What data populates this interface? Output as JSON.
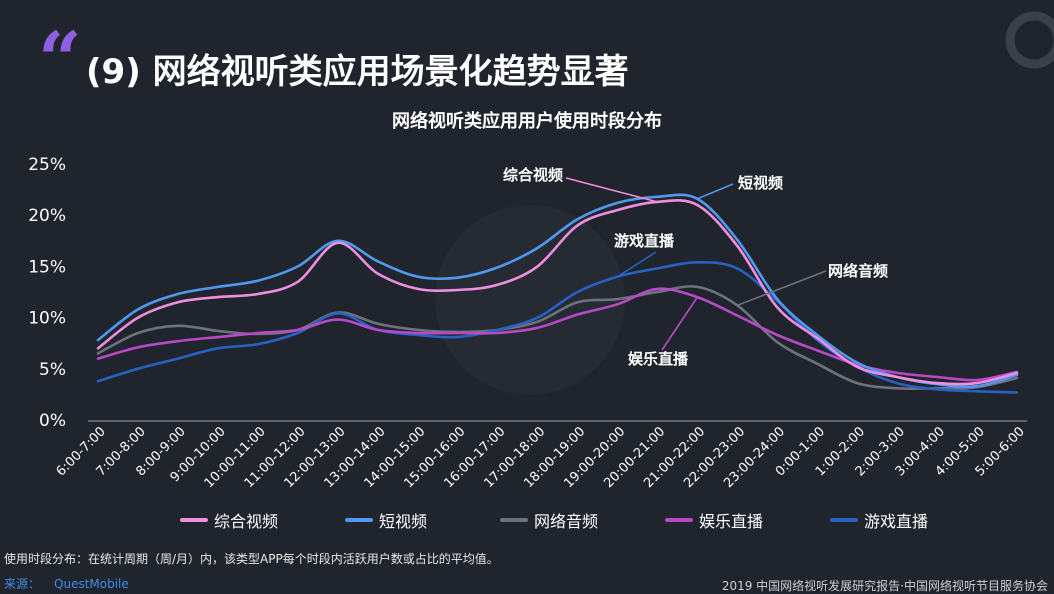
{
  "header": {
    "quote_mark": "“",
    "title": "(9) 网络视听类应用场景化趋势显著"
  },
  "chart_data": {
    "type": "line",
    "title": "网络视听类应用用户使用时段分布",
    "xlabel": "",
    "ylabel": "",
    "ylim": [
      0,
      25
    ],
    "yticks": [
      "0%",
      "5%",
      "10%",
      "15%",
      "20%",
      "25%"
    ],
    "grid": false,
    "legend": "bottom",
    "categories": [
      "6:00-7:00",
      "7:00-8:00",
      "8:00-9:00",
      "9:00-10:00",
      "10:00-11:00",
      "11:00-12:00",
      "12:00-13:00",
      "13:00-14:00",
      "14:00-15:00",
      "15:00-16:00",
      "16:00-17:00",
      "17:00-18:00",
      "18:00-19:00",
      "19:00-20:00",
      "20:00-21:00",
      "21:00-22:00",
      "22:00-23:00",
      "23:00-24:00",
      "0:00-1:00",
      "1:00-2:00",
      "2:00-3:00",
      "3:00-4:00",
      "4:00-5:00",
      "5:00-6:00"
    ],
    "series": [
      {
        "name": "综合视频",
        "color": "#f08ee0",
        "values": [
          7.0,
          10.0,
          11.5,
          12.0,
          12.3,
          13.5,
          17.3,
          14.3,
          12.8,
          12.7,
          13.2,
          15.0,
          19.0,
          20.5,
          21.3,
          21.0,
          17.0,
          11.0,
          8.0,
          5.2,
          4.2,
          3.6,
          3.6,
          4.6
        ]
      },
      {
        "name": "短视频",
        "color": "#4f9af0",
        "values": [
          7.8,
          10.8,
          12.3,
          13.0,
          13.6,
          15.0,
          17.5,
          15.5,
          14.0,
          13.9,
          14.9,
          16.8,
          19.6,
          21.2,
          21.8,
          21.6,
          17.6,
          11.8,
          8.3,
          5.6,
          4.2,
          3.5,
          3.3,
          4.4
        ]
      },
      {
        "name": "网络音频",
        "color": "#6e727f",
        "values": [
          6.5,
          8.5,
          9.2,
          8.7,
          8.4,
          8.8,
          10.5,
          9.4,
          8.8,
          8.6,
          8.8,
          9.6,
          11.5,
          11.8,
          12.5,
          13.0,
          11.2,
          7.6,
          5.5,
          3.6,
          3.1,
          3.1,
          3.2,
          4.1
        ]
      },
      {
        "name": "娱乐直播",
        "color": "#b84ac8",
        "values": [
          6.0,
          7.1,
          7.7,
          8.1,
          8.5,
          8.8,
          9.8,
          8.8,
          8.5,
          8.5,
          8.5,
          9.0,
          10.3,
          11.3,
          12.8,
          12.0,
          10.2,
          8.3,
          6.8,
          5.4,
          4.6,
          4.2,
          3.9,
          4.7
        ]
      },
      {
        "name": "游戏直播",
        "color": "#2662c2",
        "values": [
          3.8,
          5.0,
          6.0,
          7.0,
          7.4,
          8.5,
          10.4,
          8.8,
          8.3,
          8.1,
          8.8,
          10.0,
          12.5,
          14.0,
          14.8,
          15.4,
          14.8,
          11.6,
          7.8,
          5.2,
          3.6,
          3.0,
          2.8,
          2.7
        ]
      }
    ],
    "annotations": [
      {
        "text": "综合视频",
        "series": "综合视频"
      },
      {
        "text": "短视频",
        "series": "短视频"
      },
      {
        "text": "游戏直播",
        "series": "游戏直播"
      },
      {
        "text": "网络音频",
        "series": "网络音频"
      },
      {
        "text": "娱乐直播",
        "series": "娱乐直播"
      }
    ]
  },
  "footer": {
    "note": "使用时段分布：在统计周期（周/月）内，该类型APP每个时段内活跃用户数或占比的平均值。",
    "source_label": "来源：",
    "source_name": "QuestMobile",
    "copyright": "2019 中国网络视听发展研究报告·中国网络视听节目服务协会"
  }
}
